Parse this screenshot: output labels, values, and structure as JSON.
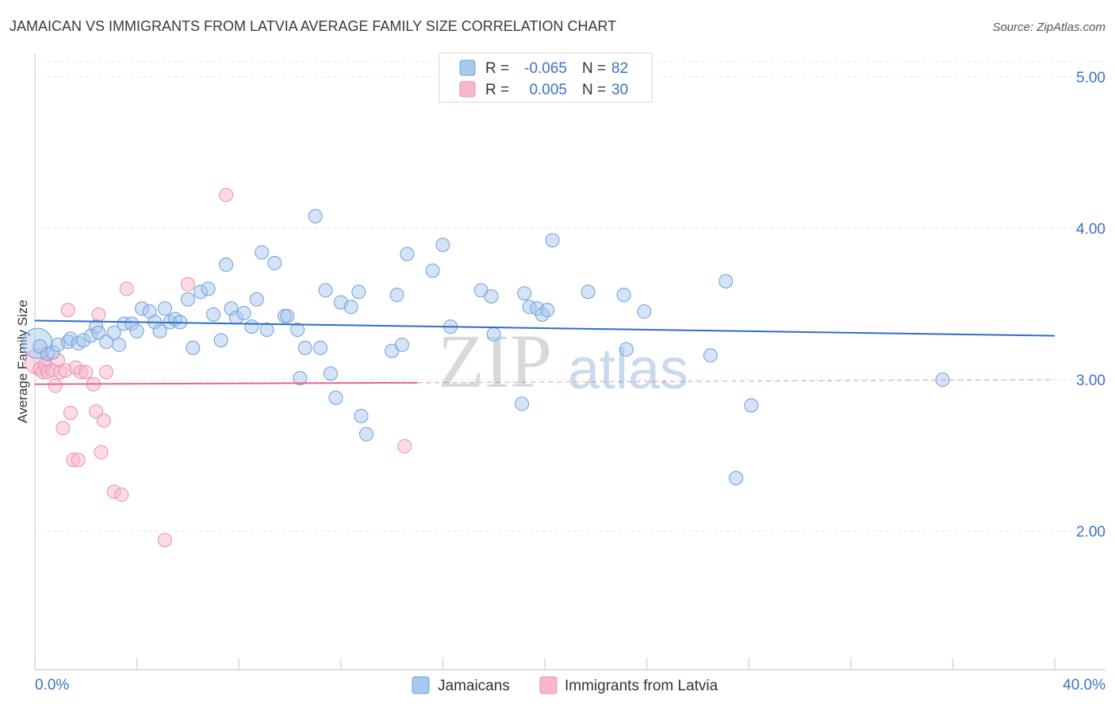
{
  "chart_data": {
    "type": "scatter",
    "title": "JAMAICAN VS IMMIGRANTS FROM LATVIA AVERAGE FAMILY SIZE CORRELATION CHART",
    "source": "Source: ZipAtlas.com",
    "ylabel": "Average Family Size",
    "xlabel": "",
    "xlim": [
      0,
      40
    ],
    "ylim": [
      1.0,
      5.1
    ],
    "x_tick_labels": [
      "0.0%",
      "40.0%"
    ],
    "y_ticks": [
      2.0,
      3.0,
      4.0,
      5.0
    ],
    "y_tick_labels": [
      "2.00",
      "3.00",
      "4.00",
      "5.00"
    ],
    "legend": {
      "r_label": "R =",
      "n_label": "N =",
      "entries": [
        {
          "r": "-0.065",
          "n": "82"
        },
        {
          "r": "0.005",
          "n": "30"
        }
      ]
    },
    "watermark": {
      "zip": "ZIP",
      "atlas": "atlas"
    },
    "colors": {
      "jamaicans_fill": "#a9c8ee",
      "jamaicans_stroke": "#6f9fd8",
      "jamaicans_line": "#2f6cc6",
      "latvia_fill": "#f7b8cc",
      "latvia_stroke": "#ea8fab",
      "latvia_line": "#e0668f",
      "grid": "#e4e4e4",
      "tick": "#3c73c4"
    },
    "series": [
      {
        "name": "Jamaicans",
        "trend": {
          "x": [
            0,
            40
          ],
          "y": [
            3.39,
            3.29
          ]
        },
        "points": [
          [
            0.2,
            3.22
          ],
          [
            0.5,
            3.17
          ],
          [
            0.7,
            3.18
          ],
          [
            0.9,
            3.23
          ],
          [
            1.3,
            3.25
          ],
          [
            1.4,
            3.27
          ],
          [
            1.7,
            3.24
          ],
          [
            1.9,
            3.26
          ],
          [
            2.2,
            3.29
          ],
          [
            2.4,
            3.35
          ],
          [
            2.5,
            3.31
          ],
          [
            2.8,
            3.25
          ],
          [
            3.1,
            3.31
          ],
          [
            3.3,
            3.23
          ],
          [
            3.5,
            3.37
          ],
          [
            3.8,
            3.37
          ],
          [
            4.0,
            3.32
          ],
          [
            4.2,
            3.47
          ],
          [
            4.5,
            3.45
          ],
          [
            4.7,
            3.38
          ],
          [
            4.9,
            3.32
          ],
          [
            5.1,
            3.47
          ],
          [
            5.3,
            3.38
          ],
          [
            5.5,
            3.4
          ],
          [
            5.7,
            3.38
          ],
          [
            6.0,
            3.53
          ],
          [
            6.2,
            3.21
          ],
          [
            6.5,
            3.58
          ],
          [
            6.8,
            3.6
          ],
          [
            7.0,
            3.43
          ],
          [
            7.3,
            3.26
          ],
          [
            7.5,
            3.76
          ],
          [
            7.7,
            3.47
          ],
          [
            7.9,
            3.41
          ],
          [
            8.2,
            3.44
          ],
          [
            8.5,
            3.35
          ],
          [
            8.7,
            3.53
          ],
          [
            8.9,
            3.84
          ],
          [
            9.1,
            3.33
          ],
          [
            9.4,
            3.77
          ],
          [
            9.8,
            3.42
          ],
          [
            9.9,
            3.42
          ],
          [
            10.3,
            3.33
          ],
          [
            10.4,
            3.01
          ],
          [
            10.6,
            3.21
          ],
          [
            11.0,
            4.08
          ],
          [
            11.2,
            3.21
          ],
          [
            11.4,
            3.59
          ],
          [
            11.6,
            3.04
          ],
          [
            11.8,
            2.88
          ],
          [
            12.0,
            3.51
          ],
          [
            12.4,
            3.48
          ],
          [
            12.7,
            3.58
          ],
          [
            12.8,
            2.76
          ],
          [
            13.0,
            2.64
          ],
          [
            14.0,
            3.19
          ],
          [
            14.2,
            3.56
          ],
          [
            14.4,
            3.23
          ],
          [
            14.6,
            3.83
          ],
          [
            15.6,
            3.72
          ],
          [
            16.0,
            3.89
          ],
          [
            16.3,
            3.35
          ],
          [
            17.5,
            3.59
          ],
          [
            17.9,
            3.55
          ],
          [
            18.0,
            3.3
          ],
          [
            19.1,
            2.84
          ],
          [
            19.2,
            3.57
          ],
          [
            19.4,
            3.48
          ],
          [
            19.7,
            3.47
          ],
          [
            19.9,
            3.43
          ],
          [
            20.1,
            3.46
          ],
          [
            20.3,
            3.92
          ],
          [
            21.7,
            3.58
          ],
          [
            23.1,
            3.56
          ],
          [
            23.2,
            3.2
          ],
          [
            23.9,
            3.45
          ],
          [
            26.5,
            3.16
          ],
          [
            27.1,
            3.65
          ],
          [
            27.5,
            2.35
          ],
          [
            28.1,
            2.83
          ],
          [
            35.6,
            3.0
          ]
        ],
        "large_points": [
          [
            0.1,
            3.24,
            19
          ]
        ]
      },
      {
        "name": "Immigrants from Latvia",
        "trend": {
          "x": [
            0,
            15
          ],
          "y": [
            2.97,
            2.98
          ]
        },
        "trend_dashed": {
          "x": [
            15,
            40
          ],
          "y": [
            2.98,
            3.0
          ]
        },
        "points": [
          [
            0.2,
            3.07
          ],
          [
            0.3,
            3.05
          ],
          [
            0.4,
            3.1
          ],
          [
            0.5,
            3.05
          ],
          [
            0.7,
            3.06
          ],
          [
            0.8,
            2.96
          ],
          [
            0.9,
            3.13
          ],
          [
            1.0,
            3.05
          ],
          [
            1.1,
            2.68
          ],
          [
            1.2,
            3.06
          ],
          [
            1.3,
            3.46
          ],
          [
            1.4,
            2.78
          ],
          [
            1.5,
            2.47
          ],
          [
            1.6,
            3.08
          ],
          [
            1.7,
            2.47
          ],
          [
            1.8,
            3.05
          ],
          [
            2.0,
            3.05
          ],
          [
            2.3,
            2.97
          ],
          [
            2.4,
            2.79
          ],
          [
            2.5,
            3.43
          ],
          [
            2.6,
            2.52
          ],
          [
            2.8,
            3.05
          ],
          [
            3.1,
            2.26
          ],
          [
            3.4,
            2.24
          ],
          [
            3.6,
            3.6
          ],
          [
            5.1,
            1.94
          ],
          [
            6.0,
            3.63
          ],
          [
            7.5,
            4.22
          ],
          [
            14.5,
            2.56
          ],
          [
            2.7,
            2.73
          ]
        ],
        "large_points": [
          [
            0.1,
            3.12,
            16
          ]
        ]
      }
    ]
  },
  "bottom_legend": [
    "Jamaicans",
    "Immigrants from Latvia"
  ]
}
